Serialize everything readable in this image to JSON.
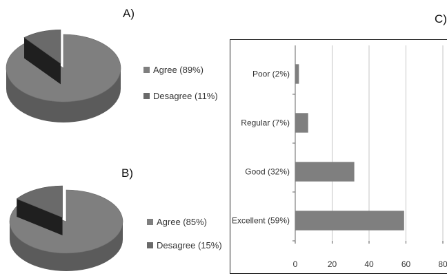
{
  "panels": {
    "a": "A)",
    "b": "B)",
    "c": "C)"
  },
  "chart_data": [
    {
      "type": "pie",
      "panel": "A)",
      "slices": [
        {
          "label": "Agree (89%)",
          "value": 89,
          "color": "#7f7f7f"
        },
        {
          "label": "Desagree (11%)",
          "value": 11,
          "color": "#6a6a6a"
        }
      ],
      "legend_position": "right"
    },
    {
      "type": "pie",
      "panel": "B)",
      "slices": [
        {
          "label": "Agree (85%)",
          "value": 85,
          "color": "#7f7f7f"
        },
        {
          "label": "Desagree (15%)",
          "value": 15,
          "color": "#6a6a6a"
        }
      ],
      "legend_position": "right"
    },
    {
      "type": "bar",
      "panel": "C)",
      "orientation": "horizontal",
      "categories": [
        "Poor (2%)",
        "Regular (7%)",
        "Good (32%)",
        "Excellent (59%)"
      ],
      "values": [
        2,
        7,
        32,
        59
      ],
      "xticks": [
        "0",
        "20",
        "40",
        "60",
        "80"
      ],
      "xlim": [
        0,
        80
      ],
      "grid": true,
      "bar_color": "#7f7f7f"
    }
  ]
}
